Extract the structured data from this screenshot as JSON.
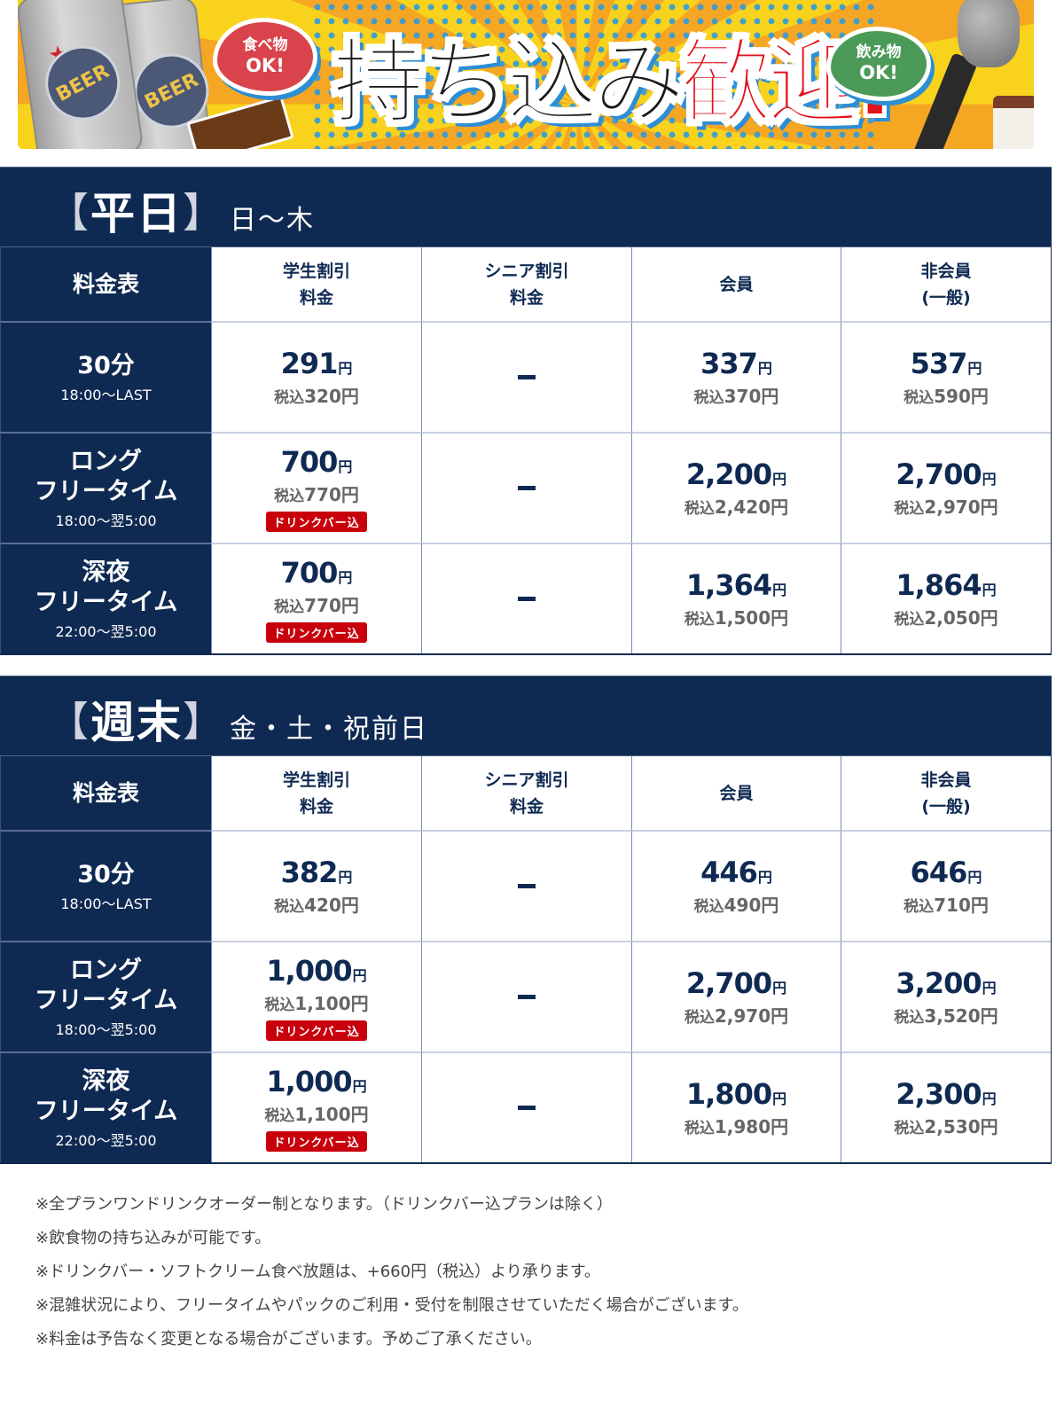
{
  "banner": {
    "headline_black": "持ち込み",
    "headline_red": "歓迎!",
    "food_bubble": {
      "line1": "食べ物",
      "line2": "OK!"
    },
    "drink_bubble": {
      "line1": "飲み物",
      "line2": "OK!"
    },
    "can_label": "BEER",
    "colors": {
      "headline_red": "#e1131c",
      "food_bubble": "#d9434c",
      "drink_bubble": "#4c9a57",
      "accent_blue": "#2d8ed6"
    }
  },
  "theme": {
    "navy": "#0f2a52",
    "badge_red": "#c8000c",
    "tax_gray": "#666666"
  },
  "columns": {
    "corner": "料金表",
    "student": {
      "line1": "学生割引",
      "line2": "料金"
    },
    "senior": {
      "line1": "シニア割引",
      "line2": "料金"
    },
    "member": {
      "line1": "会員"
    },
    "nonmember": {
      "line1": "非会員",
      "line2": "(一般)"
    }
  },
  "yen": "円",
  "tax_label": "税込",
  "drinkbar_badge": "ドリンクバー込",
  "dash": "–",
  "weekday": {
    "title_open": "【",
    "title": "平日",
    "title_close": "】",
    "days": "日〜木",
    "rows": [
      {
        "title_lines": [
          "30分"
        ],
        "time": "18:00〜LAST",
        "student": {
          "price": "291",
          "tax": "320円",
          "badge": false
        },
        "senior": null,
        "member": {
          "price": "337",
          "tax": "370円"
        },
        "nonmember": {
          "price": "537",
          "tax": "590円"
        }
      },
      {
        "title_lines": [
          "ロング",
          "フリータイム"
        ],
        "time": "18:00〜翌5:00",
        "student": {
          "price": "700",
          "tax": "770円",
          "badge": true
        },
        "senior": null,
        "member": {
          "price": "2,200",
          "tax": "2,420円"
        },
        "nonmember": {
          "price": "2,700",
          "tax": "2,970円"
        }
      },
      {
        "title_lines": [
          "深夜",
          "フリータイム"
        ],
        "time": "22:00〜翌5:00",
        "student": {
          "price": "700",
          "tax": "770円",
          "badge": true
        },
        "senior": null,
        "member": {
          "price": "1,364",
          "tax": "1,500円"
        },
        "nonmember": {
          "price": "1,864",
          "tax": "2,050円"
        }
      }
    ]
  },
  "weekend": {
    "title_open": "【",
    "title": "週末",
    "title_close": "】",
    "days": "金・土・祝前日",
    "rows": [
      {
        "title_lines": [
          "30分"
        ],
        "time": "18:00〜LAST",
        "student": {
          "price": "382",
          "tax": "420円",
          "badge": false
        },
        "senior": null,
        "member": {
          "price": "446",
          "tax": "490円"
        },
        "nonmember": {
          "price": "646",
          "tax": "710円"
        }
      },
      {
        "title_lines": [
          "ロング",
          "フリータイム"
        ],
        "time": "18:00〜翌5:00",
        "student": {
          "price": "1,000",
          "tax": "1,100円",
          "badge": true
        },
        "senior": null,
        "member": {
          "price": "2,700",
          "tax": "2,970円"
        },
        "nonmember": {
          "price": "3,200",
          "tax": "3,520円"
        }
      },
      {
        "title_lines": [
          "深夜",
          "フリータイム"
        ],
        "time": "22:00〜翌5:00",
        "student": {
          "price": "1,000",
          "tax": "1,100円",
          "badge": true
        },
        "senior": null,
        "member": {
          "price": "1,800",
          "tax": "1,980円"
        },
        "nonmember": {
          "price": "2,300",
          "tax": "2,530円"
        }
      }
    ]
  },
  "notes": [
    "※全プランワンドリンクオーダー制となります。（ドリンクバー込プランは除く）",
    "※飲食物の持ち込みが可能です。",
    "※ドリンクバー・ソフトクリーム食べ放題は、+660円（税込）より承ります。",
    "※混雑状況により、フリータイムやパックのご利用・受付を制限させていただく場合がございます。",
    "※料金は予告なく変更となる場合がございます。予めご了承ください。"
  ]
}
